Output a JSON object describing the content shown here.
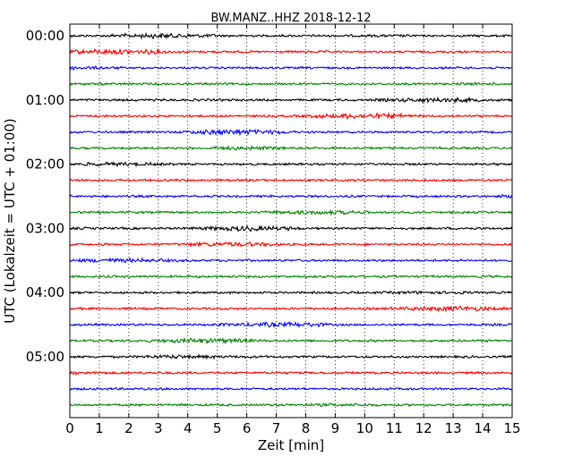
{
  "chart_data": {
    "type": "line",
    "title": "BW.MANZ..HHZ 2018-12-12",
    "xlabel": "Zeit  [min]",
    "ylabel": "UTC (Lokalzeit = UTC + 01:00)",
    "xlim": [
      0,
      15
    ],
    "x_ticks": [
      "0",
      "1",
      "2",
      "3",
      "4",
      "5",
      "6",
      "7",
      "8",
      "9",
      "10",
      "11",
      "12",
      "13",
      "14",
      "15"
    ],
    "y_tick_labels": [
      "00:00",
      "01:00",
      "02:00",
      "03:00",
      "04:00",
      "05:00"
    ],
    "trace_count": 24,
    "trace_interval_minutes": 15,
    "trace_colors": [
      "#000000",
      "#ff0000",
      "#0000ff",
      "#008000"
    ],
    "grid": {
      "x_dotted": true
    }
  }
}
